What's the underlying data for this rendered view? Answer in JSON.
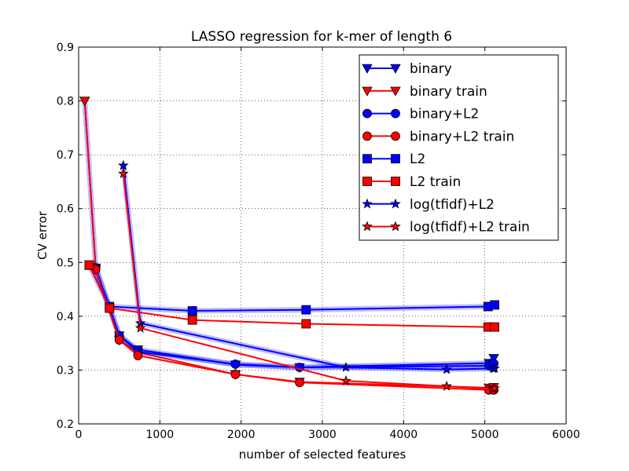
{
  "chart_data": {
    "type": "line",
    "title": "LASSO regression for k-mer of length 6",
    "xlabel": "number of selected features",
    "ylabel": "CV error",
    "xlim": [
      0,
      6000
    ],
    "ylim": [
      0.2,
      0.9
    ],
    "xticks": [
      0,
      1000,
      2000,
      3000,
      4000,
      5000,
      6000
    ],
    "xtick_labels": [
      "0",
      "1000",
      "2000",
      "3000",
      "4000",
      "5000",
      "6000"
    ],
    "yticks": [
      0.2,
      0.3,
      0.4,
      0.5,
      0.6,
      0.7,
      0.8,
      0.9
    ],
    "ytick_labels": [
      "0.2",
      "0.3",
      "0.4",
      "0.5",
      "0.6",
      "0.7",
      "0.8",
      "0.9"
    ],
    "grid": true,
    "legend_position": "top-right",
    "series": [
      {
        "name": "binary",
        "color": "#0000ff",
        "marker": "triangle-down",
        "x": [
          75,
          210,
          500,
          730,
          1930,
          2720,
          5050,
          5110
        ],
        "y": [
          0.8,
          0.49,
          0.364,
          0.338,
          0.31,
          0.305,
          0.313,
          0.322
        ]
      },
      {
        "name": "binary train",
        "color": "#ff0000",
        "marker": "triangle-down",
        "x": [
          75,
          210,
          500,
          730,
          1930,
          2720,
          5050,
          5110
        ],
        "y": [
          0.8,
          0.487,
          0.356,
          0.333,
          0.292,
          0.278,
          0.267,
          0.268
        ]
      },
      {
        "name": "binary+L2",
        "color": "#0000ff",
        "marker": "circle",
        "x": [
          210,
          500,
          730,
          1930,
          2720,
          5050,
          5110
        ],
        "y": [
          0.49,
          0.364,
          0.334,
          0.311,
          0.305,
          0.308,
          0.312
        ]
      },
      {
        "name": "binary+L2 train",
        "color": "#ff0000",
        "marker": "circle",
        "x": [
          210,
          500,
          730,
          1930,
          2720,
          5050,
          5110
        ],
        "y": [
          0.487,
          0.356,
          0.327,
          0.292,
          0.277,
          0.263,
          0.263
        ]
      },
      {
        "name": "L2",
        "color": "#0000ff",
        "marker": "square",
        "x": [
          130,
          380,
          1400,
          2800,
          5040,
          5120
        ],
        "y": [
          0.495,
          0.418,
          0.41,
          0.412,
          0.418,
          0.421
        ]
      },
      {
        "name": "L2 train",
        "color": "#ff0000",
        "marker": "square",
        "x": [
          130,
          380,
          1400,
          2800,
          5040,
          5120
        ],
        "y": [
          0.495,
          0.415,
          0.393,
          0.386,
          0.38,
          0.38
        ]
      },
      {
        "name": "log(tfidf)+L2",
        "color": "#0000ff",
        "marker": "star",
        "x": [
          550,
          760,
          3290,
          4530,
          5100,
          5120
        ],
        "y": [
          0.68,
          0.387,
          0.305,
          0.301,
          0.303,
          0.303
        ]
      },
      {
        "name": "log(tfidf)+L2 train",
        "color": "#ff0000",
        "marker": "star",
        "x": [
          550,
          760,
          3290,
          4530,
          5100,
          5120
        ],
        "y": [
          0.665,
          0.378,
          0.28,
          0.27,
          0.265,
          0.266
        ]
      }
    ]
  }
}
